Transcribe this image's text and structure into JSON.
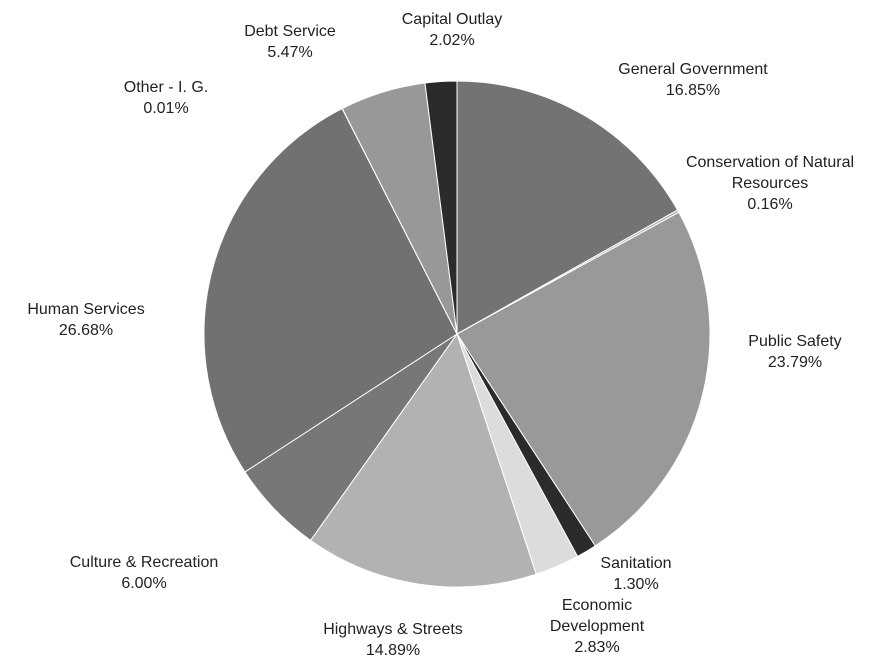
{
  "chart_data": {
    "type": "pie",
    "start_angle_deg": 0,
    "direction": "clockwise",
    "slices": [
      {
        "label": "General Government",
        "value": 16.85,
        "value_label": "16.85%",
        "color": "#737373",
        "label_lines": [
          "General Government"
        ]
      },
      {
        "label": "Conservation of Natural Resources",
        "value": 0.16,
        "value_label": "0.16%",
        "color": "#b0b0b0",
        "label_lines": [
          "Conservation of Natural",
          "Resources"
        ]
      },
      {
        "label": "Public Safety",
        "value": 23.79,
        "value_label": "23.79%",
        "color": "#999999",
        "label_lines": [
          "Public Safety"
        ]
      },
      {
        "label": "Sanitation",
        "value": 1.3,
        "value_label": "1.30%",
        "color": "#2b2b2b",
        "label_lines": [
          "Sanitation"
        ]
      },
      {
        "label": "Economic Development",
        "value": 2.83,
        "value_label": "2.83%",
        "color": "#dcdcdc",
        "label_lines": [
          "Economic",
          "Development"
        ]
      },
      {
        "label": "Highways & Streets",
        "value": 14.89,
        "value_label": "14.89%",
        "color": "#b2b2b2",
        "label_lines": [
          "Highways & Streets"
        ]
      },
      {
        "label": "Culture & Recreation",
        "value": 6.0,
        "value_label": "6.00%",
        "color": "#777777",
        "label_lines": [
          "Culture & Recreation"
        ]
      },
      {
        "label": "Human Services",
        "value": 26.68,
        "value_label": "26.68%",
        "color": "#717171",
        "label_lines": [
          "Human Services"
        ]
      },
      {
        "label": "Other - I. G.",
        "value": 0.01,
        "value_label": "0.01%",
        "color": "#888888",
        "label_lines": [
          "Other - I. G."
        ]
      },
      {
        "label": "Debt Service",
        "value": 5.47,
        "value_label": "5.47%",
        "color": "#989898",
        "label_lines": [
          "Debt Service"
        ]
      },
      {
        "label": "Capital Outlay",
        "value": 2.02,
        "value_label": "2.02%",
        "color": "#2b2b2b",
        "label_lines": [
          "Capital Outlay"
        ]
      }
    ]
  }
}
